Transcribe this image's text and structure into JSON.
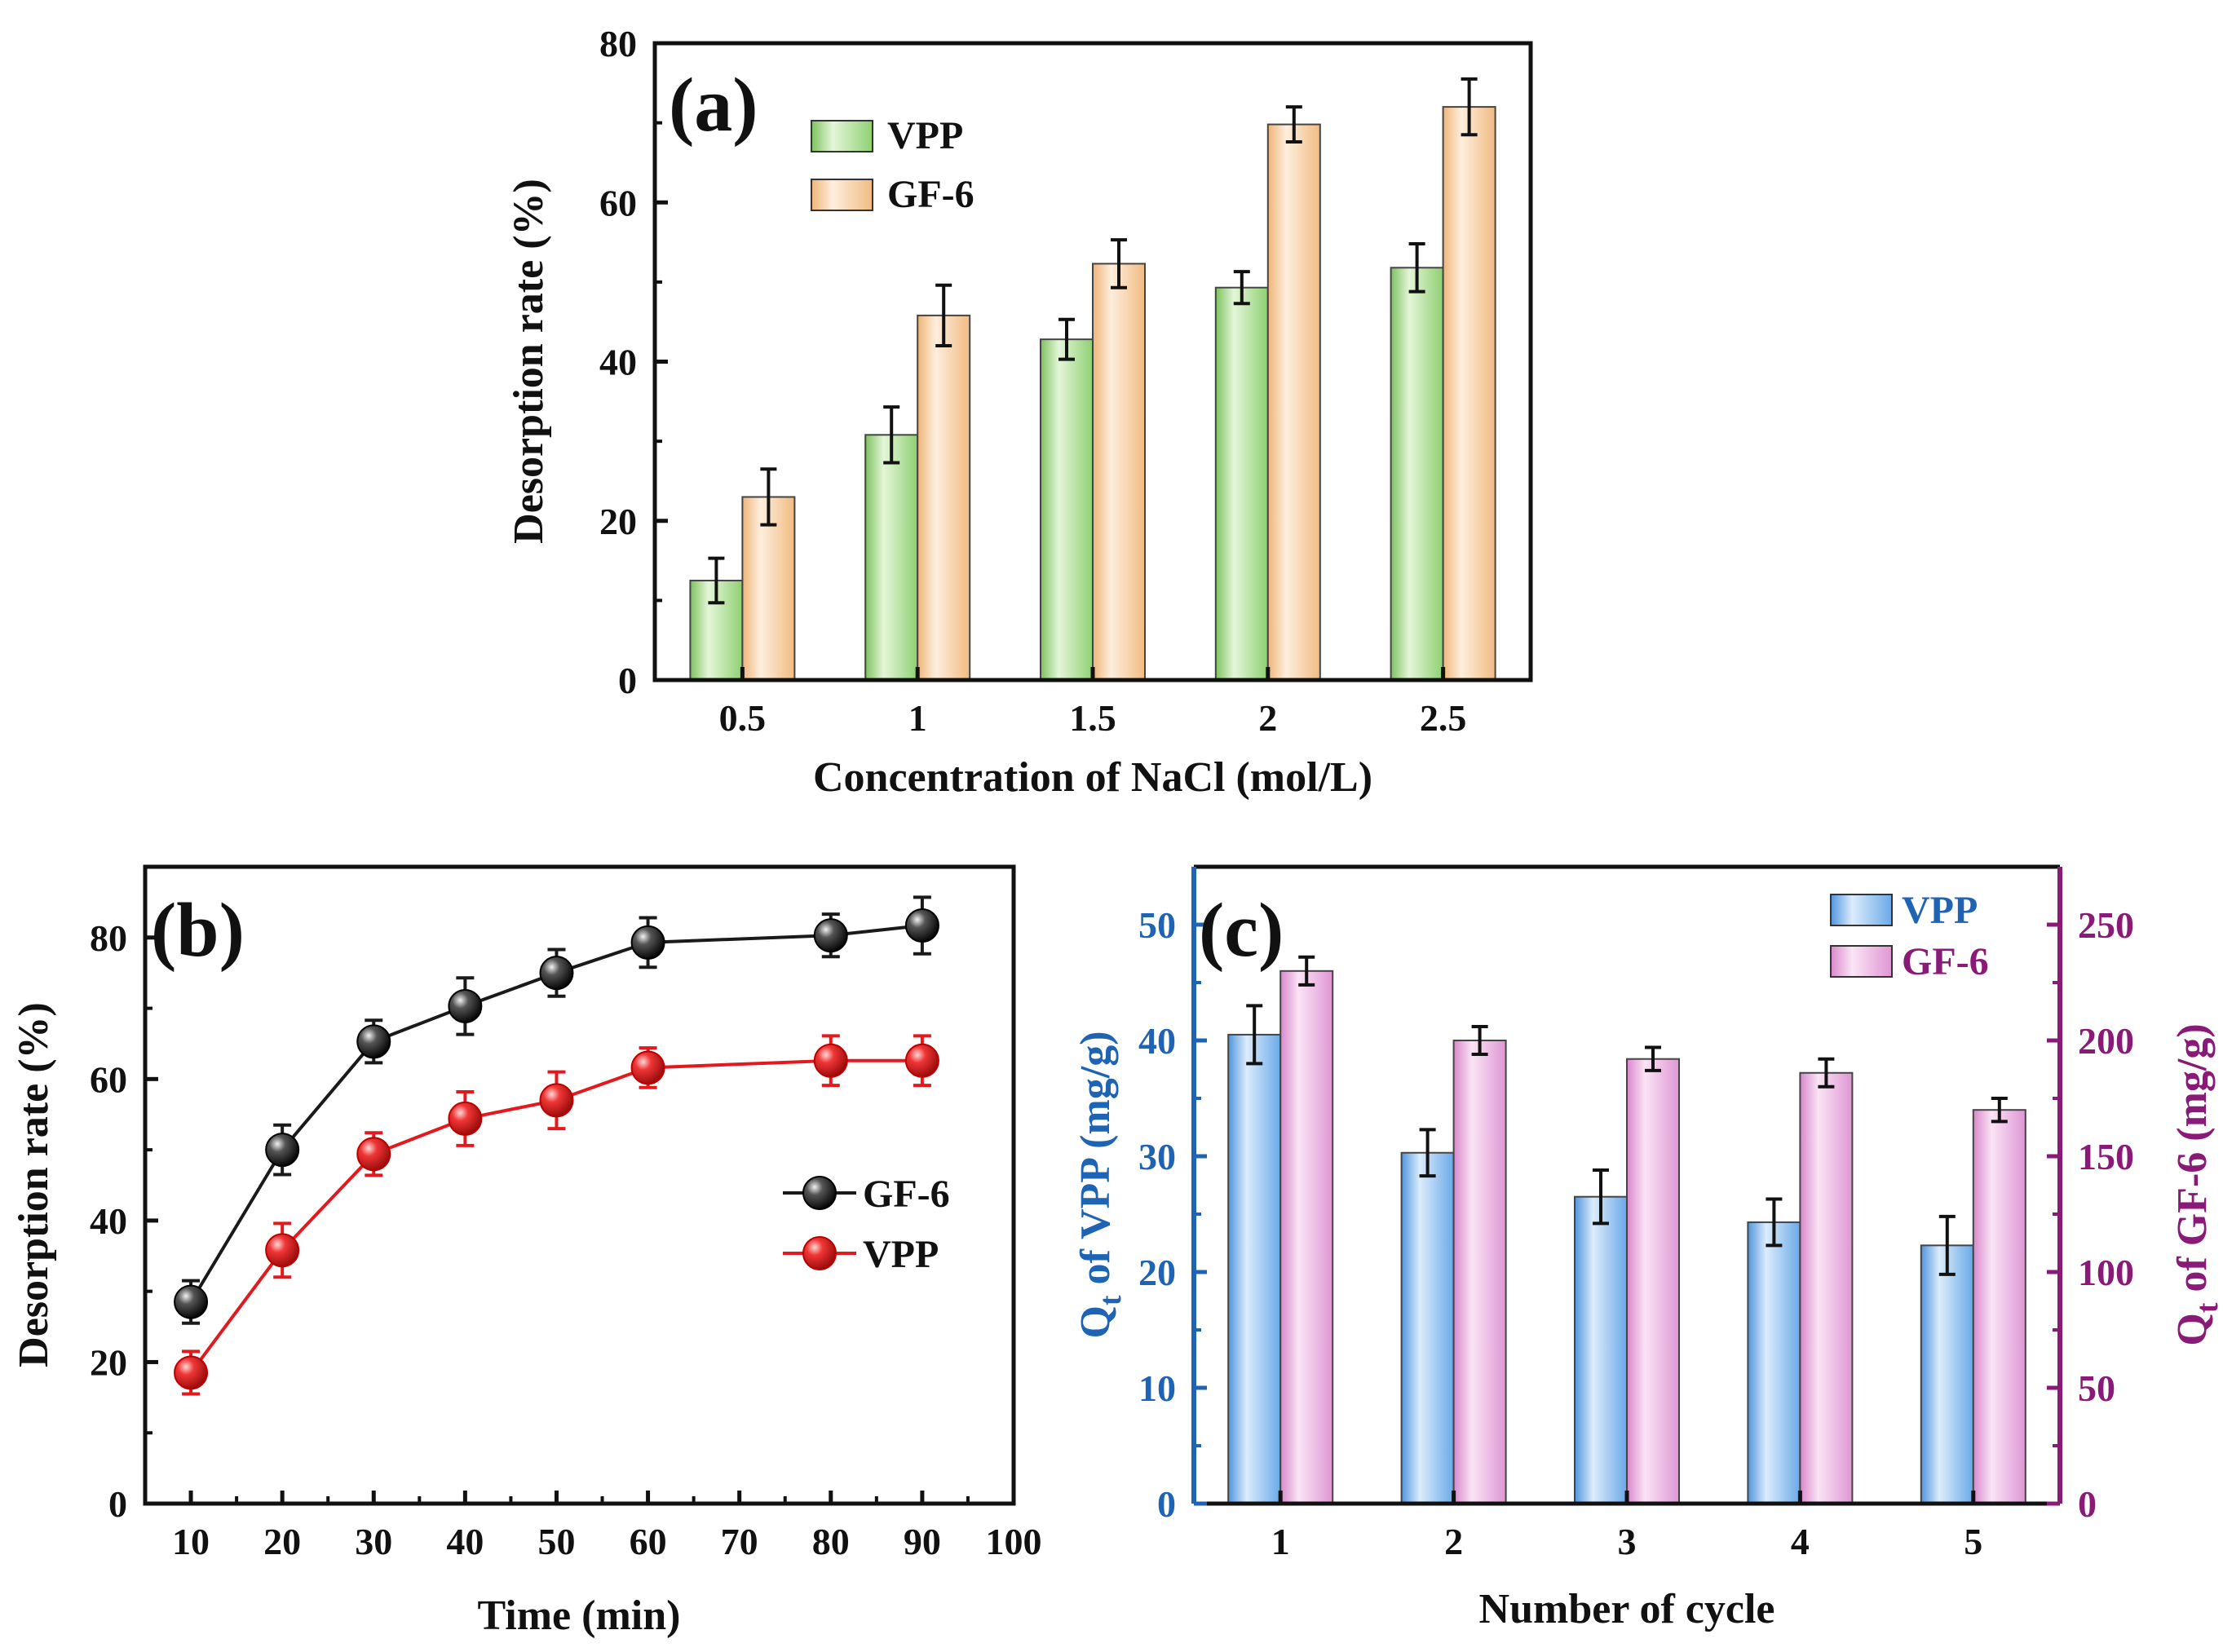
{
  "colors": {
    "vpp_a": "#a9dd8f",
    "gf6_a": "#f6c892",
    "black_series": "#1a1a1a",
    "red_series": "#e3191e",
    "vpp_c": "#7fb4ea",
    "gf6_c": "#e9a7dc",
    "left_axis_c": "#1f63b4",
    "right_axis_c": "#8a1a78"
  },
  "chart_data": [
    {
      "id": "a",
      "panel_label": "(a)",
      "type": "bar",
      "xlabel": "Concentration of NaCl (mol/L)",
      "ylabel": "Desorption rate (%)",
      "categories": [
        "0.5",
        "1",
        "1.5",
        "2",
        "2.5"
      ],
      "ylim": [
        0,
        80
      ],
      "yticks": [
        0,
        20,
        40,
        60,
        80
      ],
      "legend_position": "top-left",
      "series": [
        {
          "name": "VPP",
          "values": [
            12.5,
            30.8,
            42.8,
            49.3,
            51.8
          ],
          "errors": [
            2.8,
            3.5,
            2.5,
            2.0,
            3.0
          ]
        },
        {
          "name": "GF-6",
          "values": [
            23.0,
            45.8,
            52.3,
            69.8,
            72.0
          ],
          "errors": [
            3.5,
            3.8,
            3.0,
            2.2,
            3.5
          ]
        }
      ]
    },
    {
      "id": "b",
      "panel_label": "(b)",
      "type": "line",
      "xlabel": "Time (min)",
      "ylabel": "Desorption rate (%)",
      "xlim": [
        5,
        100
      ],
      "xticks": [
        10,
        20,
        30,
        40,
        50,
        60,
        70,
        80,
        90,
        100
      ],
      "ylim": [
        0,
        90
      ],
      "yticks": [
        0,
        20,
        40,
        60,
        80
      ],
      "legend_position": "center-right",
      "series": [
        {
          "name": "GF-6",
          "x": [
            10,
            20,
            30,
            40,
            50,
            60,
            80,
            90
          ],
          "values": [
            28.5,
            50.0,
            65.3,
            70.3,
            75.0,
            79.3,
            80.3,
            81.7
          ],
          "errors": [
            3.0,
            3.5,
            3.0,
            4.0,
            3.3,
            3.5,
            3.0,
            4.0
          ]
        },
        {
          "name": "VPP",
          "x": [
            10,
            20,
            30,
            40,
            50,
            60,
            80,
            90
          ],
          "values": [
            18.5,
            35.8,
            49.4,
            54.4,
            57.0,
            61.6,
            62.6,
            62.6
          ],
          "errors": [
            3.0,
            3.8,
            3.0,
            3.8,
            4.0,
            2.8,
            3.5,
            3.5
          ]
        }
      ]
    },
    {
      "id": "c",
      "panel_label": "(c)",
      "type": "bar",
      "xlabel": "Number of cycle",
      "ylabel_left": "Q",
      "ylabel_left_sub": "t",
      "ylabel_left_rest": " of VPP (mg/g)",
      "ylabel_right": "Q",
      "ylabel_right_sub": "t",
      "ylabel_right_rest": " of GF-6 (mg/g)",
      "categories": [
        "1",
        "2",
        "3",
        "4",
        "5"
      ],
      "ylim_left": [
        0,
        55
      ],
      "yticks_left": [
        0,
        10,
        20,
        30,
        40,
        50
      ],
      "ylim_right": [
        0,
        275
      ],
      "yticks_right": [
        0,
        50,
        100,
        150,
        200,
        250
      ],
      "legend_position": "top-right",
      "series": [
        {
          "name": "VPP",
          "axis": "left",
          "values": [
            40.5,
            30.3,
            26.5,
            24.3,
            22.3
          ],
          "errors": [
            2.5,
            2.0,
            2.3,
            2.0,
            2.5
          ]
        },
        {
          "name": "GF-6",
          "axis": "right",
          "values": [
            230,
            200,
            192,
            186,
            170
          ],
          "errors": [
            6,
            6,
            5,
            6,
            5
          ]
        }
      ]
    }
  ]
}
